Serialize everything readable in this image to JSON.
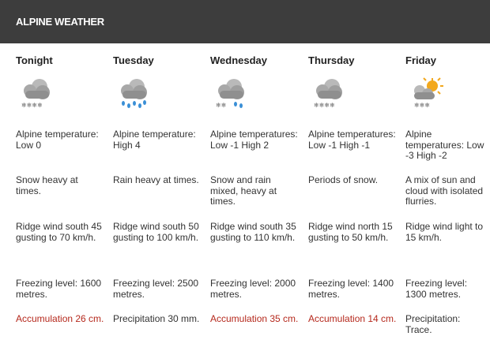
{
  "header": {
    "title": "ALPINE WEATHER"
  },
  "days": [
    {
      "name": "Tonight",
      "icon": "snow-cloud-icon",
      "temperature": "Alpine temperature: Low 0",
      "condition": "Snow heavy at times.",
      "wind": "Ridge wind south 45 gusting to 70 km/h.",
      "freezing": "Freezing level: 1600 metres.",
      "precip": "Accumulation 26 cm.",
      "precip_highlight": true
    },
    {
      "name": "Tuesday",
      "icon": "rain-cloud-icon",
      "temperature": "Alpine temperature: High 4",
      "condition": "Rain heavy at times.",
      "wind": "Ridge wind south 50 gusting to 100 km/h.",
      "freezing": "Freezing level: 2500 metres.",
      "precip": "Precipitation 30 mm.",
      "precip_highlight": false
    },
    {
      "name": "Wednesday",
      "icon": "snow-rain-cloud-icon",
      "temperature": "Alpine temperatures: Low -1 High 2",
      "condition": "Snow and rain mixed, heavy at times.",
      "wind": "Ridge wind south 35 gusting to 110 km/h.",
      "freezing": "Freezing level: 2000 metres.",
      "precip": "Accumulation 35 cm.",
      "precip_highlight": true
    },
    {
      "name": "Thursday",
      "icon": "snow-cloud-icon",
      "temperature": "Alpine temperatures: Low -1 High -1",
      "condition": "Periods of snow.",
      "wind": "Ridge wind north 15 gusting to 50 km/h.",
      "freezing": "Freezing level: 1400 metres.",
      "precip": "Accumulation 14 cm.",
      "precip_highlight": true
    },
    {
      "name": "Friday",
      "icon": "sun-cloud-flurries-icon",
      "temperature": "Alpine temperatures: Low -3 High -2",
      "condition": "A mix of sun and cloud with isolated flurries.",
      "wind": "Ridge wind light to 15 km/h.",
      "freezing": "Freezing level: 1300 metres.",
      "precip": "Precipitation: Trace.",
      "precip_highlight": false
    }
  ],
  "colors": {
    "header_bg": "#3d3d3d",
    "accumulation_red": "#b5281c",
    "cloud_gray": "#8f8f8f",
    "rain_blue": "#3a8fd6",
    "sun_orange": "#f2a81d"
  }
}
